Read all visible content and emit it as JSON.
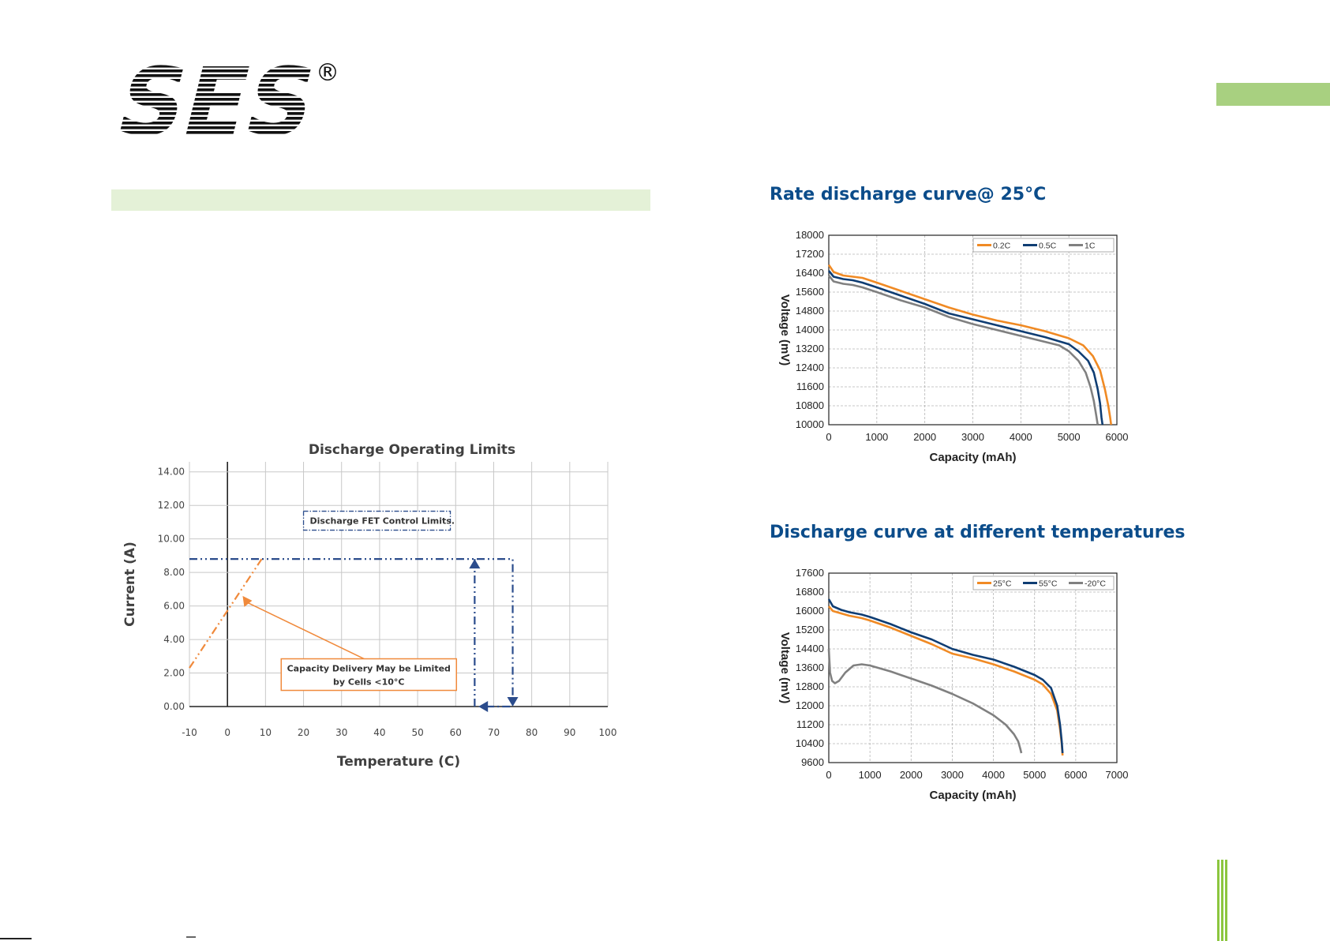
{
  "brand": {
    "logo_text": "SES",
    "registered_mark": "®",
    "accent_green": "#a8d080",
    "band_green": "#e4f1d7",
    "title_blue": "#0b4c8a"
  },
  "sections": {
    "rate_title": "Rate discharge curve@ 25°C",
    "temp_title": "Discharge curve at different temperatures"
  },
  "chart_data": [
    {
      "id": "discharge-limits",
      "type": "line",
      "title": "Discharge Operating Limits",
      "xlabel": "Temperature (C)",
      "ylabel": "Current (A)",
      "xlim": [
        -10,
        100
      ],
      "ylim": [
        0,
        14
      ],
      "x_ticks": [
        -10,
        0,
        10,
        20,
        30,
        40,
        50,
        60,
        70,
        80,
        90,
        100
      ],
      "y_ticks": [
        "0.00",
        "2.00",
        "4.00",
        "6.00",
        "8.00",
        "10.00",
        "12.00",
        "14.00"
      ],
      "grid": true,
      "series": [
        {
          "color": "#f08a3c",
          "style": "dash-dot",
          "x": [
            -10,
            9
          ],
          "y": [
            2.3,
            8.8
          ]
        },
        {
          "color": "#2b4c8c",
          "style": "dash-dot",
          "x": [
            -10,
            75,
            75
          ],
          "y": [
            8.8,
            8.8,
            0
          ]
        },
        {
          "color": "#2b4c8c",
          "style": "dash-dot",
          "x": [
            65,
            65
          ],
          "y": [
            0,
            8.8
          ]
        }
      ],
      "annotations": [
        {
          "id": "fet",
          "text": "Discharge FET Control Limits.",
          "x": 20,
          "y": 10.9
        },
        {
          "id": "capacity",
          "line1": "Capacity Delivery May be Limited",
          "line2": "by Cells <10°C",
          "x": 38,
          "y": 2.0
        }
      ]
    },
    {
      "id": "rate-discharge",
      "type": "line",
      "xlabel": "Capacity (mAh)",
      "ylabel": "Voltage (mV)",
      "xlim": [
        0,
        6000
      ],
      "ylim": [
        10000,
        18000
      ],
      "x_ticks": [
        0,
        1000,
        2000,
        3000,
        4000,
        5000,
        6000
      ],
      "y_ticks": [
        10000,
        10800,
        11600,
        12400,
        13200,
        14000,
        14800,
        15600,
        16400,
        17200,
        18000
      ],
      "grid": true,
      "legend": "top-right",
      "series": [
        {
          "name": "0.2C",
          "color": "#f08a24",
          "x": [
            0,
            100,
            300,
            500,
            700,
            1000,
            1500,
            2000,
            2500,
            3000,
            3500,
            4000,
            4500,
            5000,
            5300,
            5500,
            5650,
            5750,
            5820,
            5860,
            5880
          ],
          "y": [
            16750,
            16450,
            16300,
            16250,
            16200,
            16000,
            15650,
            15300,
            14950,
            14650,
            14400,
            14200,
            13950,
            13650,
            13350,
            12900,
            12300,
            11500,
            10800,
            10300,
            10000
          ]
        },
        {
          "name": "0.5C",
          "color": "#0f3d73",
          "x": [
            0,
            100,
            300,
            500,
            700,
            1000,
            1500,
            2000,
            2500,
            3000,
            3500,
            4000,
            4500,
            5000,
            5200,
            5400,
            5520,
            5600,
            5650,
            5680,
            5700
          ],
          "y": [
            16500,
            16250,
            16150,
            16100,
            16000,
            15800,
            15450,
            15100,
            14700,
            14450,
            14200,
            13950,
            13700,
            13400,
            13100,
            12700,
            12200,
            11500,
            10900,
            10300,
            10000
          ]
        },
        {
          "name": "1C",
          "color": "#808080",
          "x": [
            0,
            100,
            300,
            500,
            700,
            1000,
            1500,
            2000,
            2500,
            3000,
            3500,
            4000,
            4500,
            4800,
            5000,
            5200,
            5350,
            5450,
            5520,
            5570,
            5600
          ],
          "y": [
            16300,
            16050,
            15950,
            15900,
            15800,
            15600,
            15250,
            14950,
            14550,
            14250,
            14000,
            13750,
            13500,
            13350,
            13100,
            12700,
            12200,
            11600,
            11000,
            10400,
            10000
          ]
        }
      ]
    },
    {
      "id": "temperature-discharge",
      "type": "line",
      "xlabel": "Capacity (mAh)",
      "ylabel": "Voltage (mV)",
      "xlim": [
        0,
        7000
      ],
      "ylim": [
        9600,
        17600
      ],
      "x_ticks": [
        0,
        1000,
        2000,
        3000,
        4000,
        5000,
        6000,
        7000
      ],
      "y_ticks": [
        9600,
        10400,
        11200,
        12000,
        12800,
        13600,
        14400,
        15200,
        16000,
        16800,
        17600
      ],
      "grid": true,
      "legend": "top-right",
      "series": [
        {
          "name": "25°C",
          "color": "#f08a24",
          "x": [
            0,
            100,
            300,
            500,
            800,
            1000,
            1500,
            2000,
            2500,
            3000,
            3500,
            4000,
            4500,
            5000,
            5200,
            5400,
            5550,
            5620,
            5660,
            5680
          ],
          "y": [
            16200,
            16000,
            15900,
            15800,
            15700,
            15600,
            15300,
            14950,
            14600,
            14200,
            14000,
            13750,
            13450,
            13100,
            12900,
            12500,
            11800,
            11000,
            10400,
            9900
          ]
        },
        {
          "name": "55°C",
          "color": "#0f3d73",
          "x": [
            0,
            100,
            300,
            500,
            800,
            1000,
            1500,
            2000,
            2500,
            3000,
            3500,
            4000,
            4500,
            5000,
            5200,
            5400,
            5550,
            5620,
            5660,
            5680
          ],
          "y": [
            16500,
            16200,
            16050,
            15950,
            15850,
            15750,
            15450,
            15100,
            14800,
            14400,
            14150,
            13950,
            13650,
            13300,
            13100,
            12750,
            12000,
            11200,
            10500,
            10000
          ]
        },
        {
          "name": "-20°C",
          "color": "#808080",
          "x": [
            0,
            30,
            80,
            150,
            250,
            400,
            600,
            800,
            1000,
            1500,
            2000,
            2500,
            3000,
            3500,
            4000,
            4300,
            4500,
            4600,
            4650,
            4680
          ],
          "y": [
            14400,
            13400,
            13050,
            12950,
            13050,
            13400,
            13700,
            13750,
            13700,
            13450,
            13150,
            12850,
            12500,
            12100,
            11600,
            11200,
            10800,
            10500,
            10200,
            10000
          ]
        }
      ]
    }
  ]
}
